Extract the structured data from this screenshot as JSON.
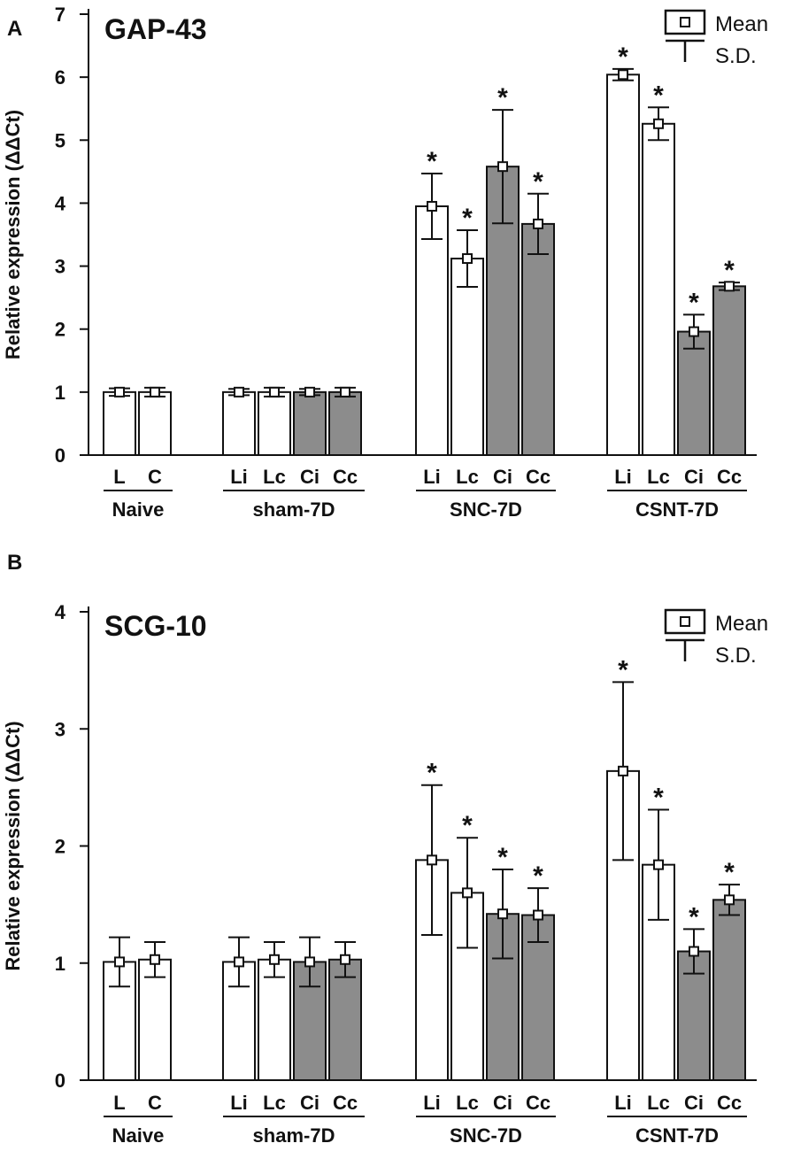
{
  "figure": {
    "shared": {
      "ylabel": "Relative expression (ΔΔCt)",
      "legend": {
        "mean_label": "Mean",
        "sd_label": "S.D.",
        "position": "top-right"
      },
      "colors": {
        "left_bar": "#ffffff",
        "right_bar": "#8c8c8c",
        "ink": "#111111"
      },
      "significance_marker": "*"
    }
  },
  "chart_data": [
    {
      "panel": "A",
      "type": "bar",
      "title": "GAP-43",
      "xlabel": "",
      "ylabel": "Relative expression (ΔΔCt)",
      "ylim": [
        0,
        7
      ],
      "yticks": [
        0,
        1,
        2,
        3,
        4,
        5,
        6,
        7
      ],
      "grid": false,
      "groups": [
        {
          "name": "Naive",
          "bars": [
            {
              "label": "L",
              "mean": 1.0,
              "sd": 0.06,
              "fill": "white",
              "sig": false
            },
            {
              "label": "C",
              "mean": 1.0,
              "sd": 0.07,
              "fill": "white",
              "sig": false
            }
          ]
        },
        {
          "name": "sham-7D",
          "bars": [
            {
              "label": "Li",
              "mean": 1.0,
              "sd": 0.05,
              "fill": "white",
              "sig": false
            },
            {
              "label": "Lc",
              "mean": 1.0,
              "sd": 0.07,
              "fill": "white",
              "sig": false
            },
            {
              "label": "Ci",
              "mean": 1.0,
              "sd": 0.05,
              "fill": "gray",
              "sig": false
            },
            {
              "label": "Cc",
              "mean": 1.0,
              "sd": 0.07,
              "fill": "gray",
              "sig": false
            }
          ]
        },
        {
          "name": "SNC-7D",
          "bars": [
            {
              "label": "Li",
              "mean": 3.95,
              "sd": 0.52,
              "fill": "white",
              "sig": true
            },
            {
              "label": "Lc",
              "mean": 3.12,
              "sd": 0.45,
              "fill": "white",
              "sig": true
            },
            {
              "label": "Ci",
              "mean": 4.58,
              "sd": 0.9,
              "fill": "gray",
              "sig": true
            },
            {
              "label": "Cc",
              "mean": 3.67,
              "sd": 0.48,
              "fill": "gray",
              "sig": true
            }
          ]
        },
        {
          "name": "CSNT-7D",
          "bars": [
            {
              "label": "Li",
              "mean": 6.04,
              "sd": 0.09,
              "fill": "white",
              "sig": true
            },
            {
              "label": "Lc",
              "mean": 5.26,
              "sd": 0.26,
              "fill": "white",
              "sig": true
            },
            {
              "label": "Ci",
              "mean": 1.96,
              "sd": 0.27,
              "fill": "gray",
              "sig": true
            },
            {
              "label": "Cc",
              "mean": 2.68,
              "sd": 0.06,
              "fill": "gray",
              "sig": true
            }
          ]
        }
      ]
    },
    {
      "panel": "B",
      "type": "bar",
      "title": "SCG-10",
      "xlabel": "",
      "ylabel": "Relative expression (ΔΔCt)",
      "ylim": [
        0,
        4
      ],
      "yticks": [
        0,
        1,
        2,
        3,
        4
      ],
      "grid": false,
      "groups": [
        {
          "name": "Naive",
          "bars": [
            {
              "label": "L",
              "mean": 1.01,
              "sd": 0.21,
              "fill": "white",
              "sig": false
            },
            {
              "label": "C",
              "mean": 1.03,
              "sd": 0.15,
              "fill": "white",
              "sig": false
            }
          ]
        },
        {
          "name": "sham-7D",
          "bars": [
            {
              "label": "Li",
              "mean": 1.01,
              "sd": 0.21,
              "fill": "white",
              "sig": false
            },
            {
              "label": "Lc",
              "mean": 1.03,
              "sd": 0.15,
              "fill": "white",
              "sig": false
            },
            {
              "label": "Ci",
              "mean": 1.01,
              "sd": 0.21,
              "fill": "gray",
              "sig": false
            },
            {
              "label": "Cc",
              "mean": 1.03,
              "sd": 0.15,
              "fill": "gray",
              "sig": false
            }
          ]
        },
        {
          "name": "SNC-7D",
          "bars": [
            {
              "label": "Li",
              "mean": 1.88,
              "sd": 0.64,
              "fill": "white",
              "sig": true
            },
            {
              "label": "Lc",
              "mean": 1.6,
              "sd": 0.47,
              "fill": "white",
              "sig": true
            },
            {
              "label": "Ci",
              "mean": 1.42,
              "sd": 0.38,
              "fill": "gray",
              "sig": true
            },
            {
              "label": "Cc",
              "mean": 1.41,
              "sd": 0.23,
              "fill": "gray",
              "sig": true
            }
          ]
        },
        {
          "name": "CSNT-7D",
          "bars": [
            {
              "label": "Li",
              "mean": 2.64,
              "sd": 0.76,
              "fill": "white",
              "sig": true
            },
            {
              "label": "Lc",
              "mean": 1.84,
              "sd": 0.47,
              "fill": "white",
              "sig": true
            },
            {
              "label": "Ci",
              "mean": 1.1,
              "sd": 0.19,
              "fill": "gray",
              "sig": true
            },
            {
              "label": "Cc",
              "mean": 1.54,
              "sd": 0.13,
              "fill": "gray",
              "sig": true
            }
          ]
        }
      ]
    }
  ]
}
